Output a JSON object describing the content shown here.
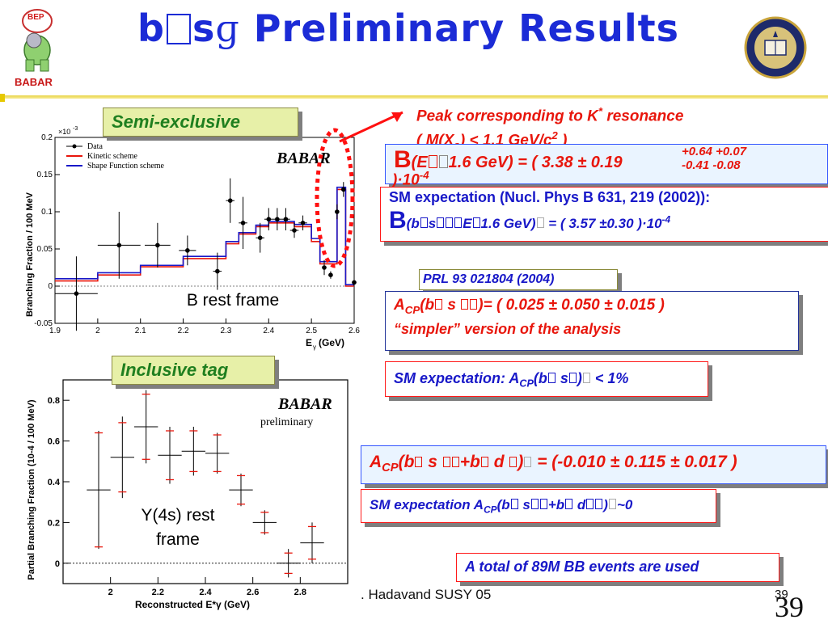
{
  "slide": {
    "title": "Preliminary Results",
    "title_prefix": "b",
    "title_mid": "s",
    "title_gamma": "ɡ",
    "footer_author": ". Hadavand  SUSY 05",
    "page_number_small": "39",
    "page_number_large": "39"
  },
  "logos": {
    "left_top": "BEP",
    "left_brand": "BABAR",
    "right_seal": "University seal"
  },
  "tabs": {
    "semi_exclusive": "Semi-exclusive",
    "inclusive_tag": "Inclusive tag"
  },
  "annotations": {
    "peak_line1": "Peak corresponding to K",
    "peak_line1_sup": "*",
    "peak_line1_tail": " resonance",
    "peak_line2": "( M(X",
    "peak_line2_sub": "s",
    "peak_line2_tail": ") < 1.1 GeV/c",
    "peak_line2_sup": "2",
    "peak_line2_end": " )"
  },
  "results": {
    "bf_main_B": "B",
    "bf_main_text": "(E",
    "bf_main_mid": "1.6 GeV) = ( 3.38 ± 0.19",
    "bf_errors_top": "+0.64 +0.07",
    "bf_errors_bottom": "-0.41  -0.08",
    "bf_tail": ")·10",
    "bf_tail_sup": "-4",
    "sm1_line1": "SM expectation (Nucl. Phys B 631, 219 (2002)):",
    "sm1_line2_B": "B",
    "sm1_line2_a": "(b",
    "sm1_line2_b": "s",
    "sm1_line2_c": "E",
    "sm1_line2_d": "1.6 GeV)",
    "sm1_line2_e": " =  ( 3.57 ±0.30 )·10",
    "sm1_line2_sup": "-4",
    "prl": "PRL  93 021804 (2004)",
    "acp1_A": "A",
    "acp1_sub": "CP",
    "acp1_a": "(b",
    "acp1_b": " s ",
    "acp1_c": ")= ( 0.025 ± 0.050 ± 0.015 )",
    "acp1_line2": "“simpler” version of the analysis",
    "sm2_a": "SM expectation: A",
    "sm2_sub": "CP",
    "sm2_b": "(b",
    "sm2_c": " s",
    "sm2_d": ")",
    "sm2_e": "  <  1%",
    "acp2_A": "A",
    "acp2_sub": "CP",
    "acp2_a": "(b",
    "acp2_b": " s ",
    "acp2_c": "+b",
    "acp2_d": " d ",
    "acp2_e": ")",
    "acp2_f": " = (-0.010 ± 0.115 ± 0.017 )",
    "sm3_a": "SM expectation A",
    "sm3_sub": "CP",
    "sm3_b": "(b",
    "sm3_c": " s",
    "sm3_d": "+b",
    "sm3_e": " d",
    "sm3_f": ")",
    "sm3_g": "~0",
    "total": "A total of 89M  BB",
    "total_bar": "‾",
    "total_tail": " events are used"
  },
  "chart_data": [
    {
      "type": "scatter",
      "title": "",
      "xlabel": "E",
      "xlabel_sub": "γ",
      "xlabel_unit": " (GeV)",
      "ylabel": "Branching Fraction / 100 MeV",
      "y_multiplier": "×10",
      "y_multiplier_sup": "-3",
      "xlim": [
        1.9,
        2.6
      ],
      "ylim": [
        -0.05,
        0.2
      ],
      "x_ticks": [
        "1.9",
        "2",
        "2.1",
        "2.2",
        "2.3",
        "2.4",
        "2.5",
        "2.6"
      ],
      "y_ticks": [
        "-0.05",
        "0",
        "0.05",
        "0.1",
        "0.15",
        "0.2"
      ],
      "brand": "BABAR",
      "legend": [
        "Data",
        "Kinetic scheme",
        "Shape Function scheme"
      ],
      "frame_label": "B rest frame",
      "series": [
        {
          "name": "Data",
          "points": [
            {
              "x": 1.95,
              "y": -0.01,
              "err": 0.05,
              "xerr": 0.05
            },
            {
              "x": 2.05,
              "y": 0.055,
              "err": 0.045,
              "xerr": 0.05
            },
            {
              "x": 2.14,
              "y": 0.055,
              "err": 0.03,
              "xerr": 0.03
            },
            {
              "x": 2.21,
              "y": 0.048,
              "err": 0.02,
              "xerr": 0.02
            },
            {
              "x": 2.28,
              "y": 0.02,
              "err": 0.025,
              "xerr": 0.01
            },
            {
              "x": 2.31,
              "y": 0.115,
              "err": 0.03,
              "xerr": 0.01
            },
            {
              "x": 2.34,
              "y": 0.085,
              "err": 0.035,
              "xerr": 0.01
            },
            {
              "x": 2.38,
              "y": 0.065,
              "err": 0.02,
              "xerr": 0.01
            },
            {
              "x": 2.4,
              "y": 0.09,
              "err": 0.015,
              "xerr": 0.01
            },
            {
              "x": 2.42,
              "y": 0.09,
              "err": 0.015,
              "xerr": 0.01
            },
            {
              "x": 2.44,
              "y": 0.09,
              "err": 0.015,
              "xerr": 0.01
            },
            {
              "x": 2.46,
              "y": 0.075,
              "err": 0.01,
              "xerr": 0.01
            },
            {
              "x": 2.48,
              "y": 0.085,
              "err": 0.01,
              "xerr": 0.01
            },
            {
              "x": 2.53,
              "y": 0.025,
              "err": 0.01,
              "xerr": 0.005
            },
            {
              "x": 2.545,
              "y": 0.015,
              "err": 0.005,
              "xerr": 0.005
            },
            {
              "x": 2.56,
              "y": 0.1,
              "err": 0.01,
              "xerr": 0.005
            },
            {
              "x": 2.575,
              "y": 0.13,
              "err": 0.01,
              "xerr": 0.005
            },
            {
              "x": 2.6,
              "y": 0.005,
              "err": 0.005,
              "xerr": 0.005
            }
          ]
        },
        {
          "name": "Kinetic scheme",
          "color": "#e8160c",
          "steps": [
            {
              "x0": 1.9,
              "x1": 2.0,
              "y": 0.007
            },
            {
              "x0": 2.0,
              "x1": 2.1,
              "y": 0.015
            },
            {
              "x0": 2.1,
              "x1": 2.2,
              "y": 0.026
            },
            {
              "x0": 2.2,
              "x1": 2.3,
              "y": 0.037
            },
            {
              "x0": 2.3,
              "x1": 2.33,
              "y": 0.057
            },
            {
              "x0": 2.33,
              "x1": 2.37,
              "y": 0.07
            },
            {
              "x0": 2.37,
              "x1": 2.4,
              "y": 0.08
            },
            {
              "x0": 2.4,
              "x1": 2.46,
              "y": 0.085
            },
            {
              "x0": 2.46,
              "x1": 2.5,
              "y": 0.08
            },
            {
              "x0": 2.5,
              "x1": 2.52,
              "y": 0.06
            },
            {
              "x0": 2.52,
              "x1": 2.56,
              "y": 0.03
            },
            {
              "x0": 2.56,
              "x1": 2.58,
              "y": 0.13
            },
            {
              "x0": 2.58,
              "x1": 2.6,
              "y": 0.0
            }
          ]
        },
        {
          "name": "Shape Function scheme",
          "color": "#1818c8",
          "steps": [
            {
              "x0": 1.9,
              "x1": 2.0,
              "y": 0.01
            },
            {
              "x0": 2.0,
              "x1": 2.1,
              "y": 0.018
            },
            {
              "x0": 2.1,
              "x1": 2.2,
              "y": 0.028
            },
            {
              "x0": 2.2,
              "x1": 2.3,
              "y": 0.04
            },
            {
              "x0": 2.3,
              "x1": 2.33,
              "y": 0.06
            },
            {
              "x0": 2.33,
              "x1": 2.37,
              "y": 0.072
            },
            {
              "x0": 2.37,
              "x1": 2.4,
              "y": 0.082
            },
            {
              "x0": 2.4,
              "x1": 2.46,
              "y": 0.087
            },
            {
              "x0": 2.46,
              "x1": 2.5,
              "y": 0.083
            },
            {
              "x0": 2.5,
              "x1": 2.52,
              "y": 0.064
            },
            {
              "x0": 2.52,
              "x1": 2.56,
              "y": 0.033
            },
            {
              "x0": 2.56,
              "x1": 2.58,
              "y": 0.133
            },
            {
              "x0": 2.58,
              "x1": 2.6,
              "y": 0.002
            }
          ]
        }
      ]
    },
    {
      "type": "scatter",
      "title": "",
      "xlabel": "Reconstructed E*",
      "xlabel_sub": "γ",
      "xlabel_unit": " (GeV)",
      "ylabel": "Partial Branching Fraction (10",
      "ylabel_sup": "-4",
      "ylabel_tail": " / 100 MeV)",
      "xlim": [
        1.8,
        3.0
      ],
      "ylim": [
        -0.1,
        0.9
      ],
      "x_ticks": [
        "2",
        "2.2",
        "2.4",
        "2.6",
        "2.8"
      ],
      "y_ticks": [
        "0",
        "0.2",
        "0.4",
        "0.6",
        "0.8"
      ],
      "brand": "BABAR",
      "brand_sub": "preliminary",
      "frame_label_1": "Y(4s) rest",
      "frame_label_2": "frame",
      "series": [
        {
          "name": "Data",
          "points": [
            {
              "x": 1.95,
              "y": 0.36,
              "err": 0.29,
              "syst": 0.28
            },
            {
              "x": 2.05,
              "y": 0.52,
              "err": 0.2,
              "syst": 0.17
            },
            {
              "x": 2.15,
              "y": 0.67,
              "err": 0.18,
              "syst": 0.16
            },
            {
              "x": 2.25,
              "y": 0.53,
              "err": 0.14,
              "syst": 0.12
            },
            {
              "x": 2.35,
              "y": 0.55,
              "err": 0.12,
              "syst": 0.1
            },
            {
              "x": 2.45,
              "y": 0.54,
              "err": 0.1,
              "syst": 0.09
            },
            {
              "x": 2.55,
              "y": 0.36,
              "err": 0.08,
              "syst": 0.07
            },
            {
              "x": 2.65,
              "y": 0.2,
              "err": 0.06,
              "syst": 0.05
            },
            {
              "x": 2.75,
              "y": 0.0,
              "err": 0.07,
              "syst": 0.05
            },
            {
              "x": 2.85,
              "y": 0.1,
              "err": 0.1,
              "syst": 0.08
            }
          ]
        }
      ]
    }
  ]
}
